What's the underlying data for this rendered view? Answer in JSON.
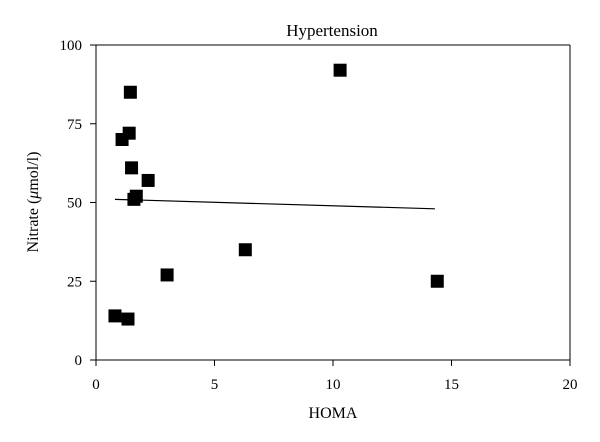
{
  "chart_data": {
    "type": "scatter",
    "title": "Hypertension",
    "xlabel": "HOMA",
    "ylabel_prefix": "Nitrate (",
    "ylabel_symbol": "μ",
    "ylabel_suffix": "mol/l)",
    "xlim": [
      0,
      20
    ],
    "ylim": [
      0,
      100
    ],
    "x_ticks": [
      "0",
      "5",
      "10",
      "15",
      "20"
    ],
    "y_ticks": [
      "0",
      "25",
      "50",
      "75",
      "100"
    ],
    "grid": false,
    "marker": "square",
    "marker_color": "#000000",
    "points": [
      {
        "x": 0.8,
        "y": 14
      },
      {
        "x": 1.1,
        "y": 70
      },
      {
        "x": 1.35,
        "y": 13
      },
      {
        "x": 1.4,
        "y": 72
      },
      {
        "x": 1.45,
        "y": 85
      },
      {
        "x": 1.5,
        "y": 61
      },
      {
        "x": 1.6,
        "y": 51
      },
      {
        "x": 1.7,
        "y": 52
      },
      {
        "x": 2.2,
        "y": 57
      },
      {
        "x": 3.0,
        "y": 27
      },
      {
        "x": 6.3,
        "y": 35
      },
      {
        "x": 10.3,
        "y": 92
      },
      {
        "x": 14.4,
        "y": 25
      }
    ],
    "trendline": {
      "x": [
        0.8,
        14.3
      ],
      "y": [
        51,
        48
      ]
    }
  }
}
